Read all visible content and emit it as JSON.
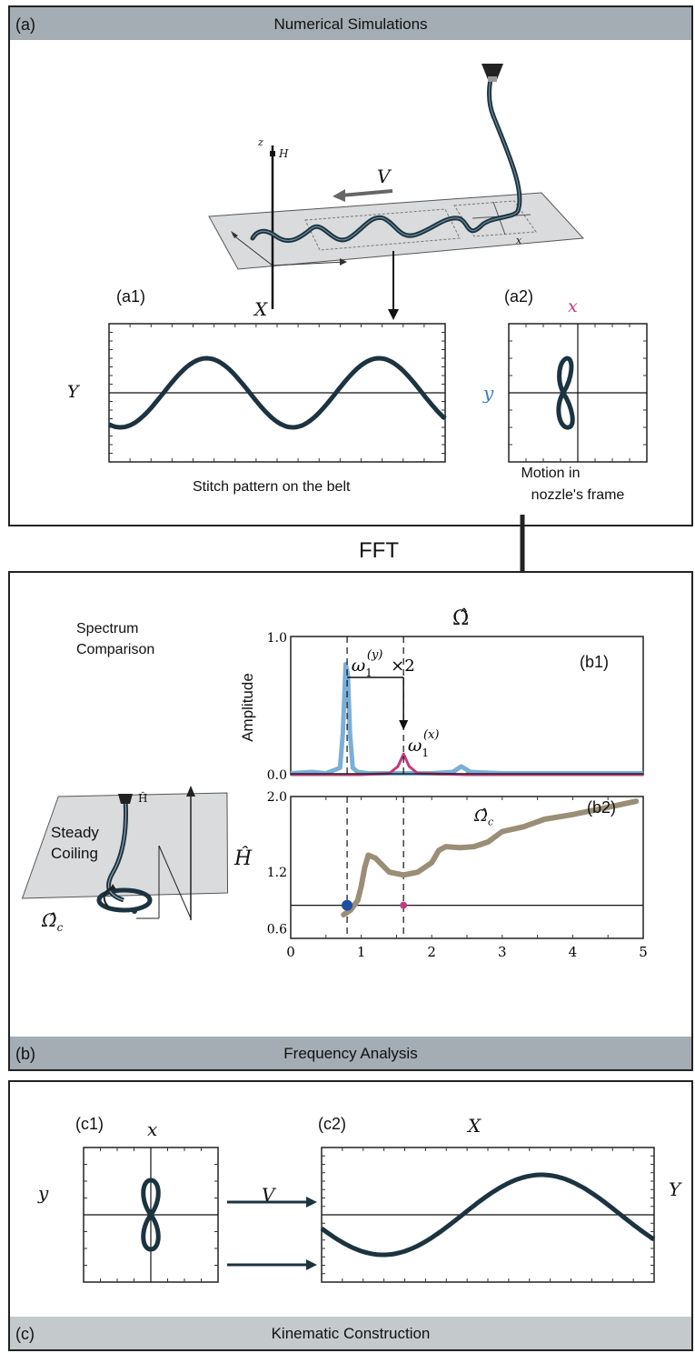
{
  "panel_a": {
    "letter": "(a)",
    "title": "Numerical Simulations",
    "sub1_letter": "(a1)",
    "sub2_letter": "(a2)",
    "axis_z": "z",
    "axis_H": "H",
    "axis_V": "V",
    "axis_X": "X",
    "axis_x_small": "x",
    "axis_Y": "Y",
    "axis_y": "y",
    "axis_x": "x",
    "caption1": "Stitch pattern on the belt",
    "caption2_line1": "Motion in",
    "caption2_line2": "nozzle's frame"
  },
  "fft_label": "FFT",
  "panel_b": {
    "letter": "(b)",
    "title": "Frequency Analysis",
    "spectrum_line1": "Spectrum",
    "spectrum_line2": "Comparison",
    "steady_line1": "Steady",
    "steady_line2": "Coiling",
    "H_hat": "Ĥ",
    "omega_c": "Ω̂",
    "omega_c_sub": "c"
  },
  "panel_c": {
    "letter": "(c)",
    "title": "Kinematic Construction",
    "sub1_letter": "(c1)",
    "sub2_letter": "(c2)",
    "axis_x": "x",
    "axis_y": "y",
    "axis_X": "X",
    "axis_Y": "Y",
    "axis_V": "V"
  },
  "chart_data": [
    {
      "type": "line",
      "id": "b1",
      "panel_label": "(b1)",
      "title": "Ω̂",
      "ylabel": "Amplitude",
      "xlim": [
        0,
        5
      ],
      "ylim": [
        0,
        1
      ],
      "yticks": [
        "0.0",
        "1.0"
      ],
      "annotations": {
        "peak_y": "ω",
        "peak_y_sub": "1",
        "peak_y_sup": "(y)",
        "peak_x": "ω",
        "peak_x_sub": "1",
        "peak_x_sup": "(x)",
        "times": "×2"
      },
      "series": [
        {
          "color": "#7bafd8",
          "x": [
            0,
            0.3,
            0.5,
            0.6,
            0.7,
            0.74,
            0.78,
            0.81,
            0.84,
            0.88,
            0.95,
            1.1,
            1.5,
            2.0,
            2.3,
            2.42,
            2.55,
            3.0,
            4.0,
            5.0
          ],
          "y": [
            0.01,
            0.02,
            0.01,
            0.03,
            0.05,
            0.3,
            0.8,
            0.72,
            0.3,
            0.05,
            0.02,
            0.01,
            0.01,
            0.01,
            0.02,
            0.06,
            0.02,
            0.01,
            0.01,
            0.01
          ]
        },
        {
          "color": "#c23a7f",
          "x": [
            0,
            1.0,
            1.4,
            1.52,
            1.6,
            1.68,
            1.8,
            2.5,
            5.0
          ],
          "y": [
            0.0,
            0.0,
            0.01,
            0.06,
            0.15,
            0.06,
            0.01,
            0.0,
            0.0
          ]
        }
      ],
      "markers_x": [
        0.8,
        1.6
      ]
    },
    {
      "type": "line",
      "id": "b2",
      "panel_label": "(b2)",
      "ylabel": "Ĥ",
      "xlim": [
        0,
        5
      ],
      "ylim": [
        0.5,
        2.0
      ],
      "xticks": [
        "0",
        "1",
        "2",
        "3",
        "4",
        "5"
      ],
      "yticks": [
        "0.6",
        "1.2",
        "2.0"
      ],
      "hline": 0.85,
      "series": [
        {
          "color": "#9a8e76",
          "x": [
            0.75,
            0.85,
            0.95,
            1.0,
            1.05,
            1.1,
            1.2,
            1.4,
            1.6,
            1.8,
            2.0,
            2.1,
            2.2,
            2.4,
            2.6,
            2.8,
            3.0,
            3.3,
            3.6,
            4.0,
            4.4,
            4.9
          ],
          "y": [
            0.75,
            0.8,
            0.9,
            1.05,
            1.25,
            1.38,
            1.35,
            1.2,
            1.17,
            1.2,
            1.3,
            1.43,
            1.47,
            1.46,
            1.47,
            1.52,
            1.63,
            1.68,
            1.76,
            1.81,
            1.87,
            1.95
          ]
        }
      ],
      "points": [
        {
          "x": 0.8,
          "y": 0.85,
          "color": "#1f4fa0"
        },
        {
          "x": 1.6,
          "y": 0.85,
          "color": "#c23a7f"
        }
      ]
    }
  ]
}
